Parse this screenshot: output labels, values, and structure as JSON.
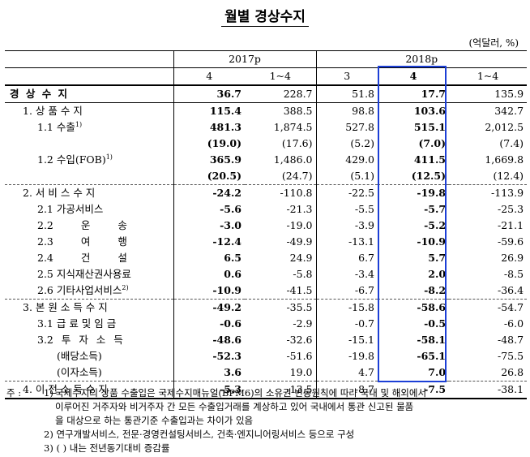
{
  "title": "월별 경상수지",
  "unit": "(억달러, %)",
  "header": {
    "year_2017": "2017p",
    "year_2018": "2018p",
    "months": [
      "4",
      "1~4",
      "3",
      "4",
      "1~4"
    ]
  },
  "rows": [
    {
      "label": "경 상 수 지",
      "v": [
        "36.7",
        "228.7",
        "51.8",
        "17.7",
        "135.9"
      ]
    },
    {
      "label": "1. 상 품 수 지",
      "v": [
        "115.4",
        "388.5",
        "98.8",
        "103.6",
        "342.7"
      ]
    },
    {
      "label": "1.1 수출",
      "v": [
        "481.3",
        "1,874.5",
        "527.8",
        "515.1",
        "2,012.5"
      ]
    },
    {
      "label": "",
      "v": [
        "(19.0)",
        "(17.6)",
        "(5.2)",
        "(7.0)",
        "(7.4)"
      ]
    },
    {
      "label": "1.2 수입(FOB)",
      "v": [
        "365.9",
        "1,486.0",
        "429.0",
        "411.5",
        "1,669.8"
      ]
    },
    {
      "label": "",
      "v": [
        "(20.5)",
        "(24.7)",
        "(5.1)",
        "(12.5)",
        "(12.4)"
      ]
    },
    {
      "label": "2. 서 비 스 수 지",
      "v": [
        "-24.2",
        "-110.8",
        "-22.5",
        "-19.8",
        "-113.9"
      ]
    },
    {
      "label": "2.1 가공서비스",
      "v": [
        "-5.6",
        "-21.3",
        "-5.5",
        "-5.7",
        "-25.3"
      ]
    },
    {
      "label": "2.2 운 송",
      "v": [
        "-3.0",
        "-19.0",
        "-3.9",
        "-5.2",
        "-21.1"
      ]
    },
    {
      "label": "2.3 여 행",
      "v": [
        "-12.4",
        "-49.9",
        "-13.1",
        "-10.9",
        "-59.6"
      ]
    },
    {
      "label": "2.4 건 설",
      "v": [
        "6.5",
        "24.9",
        "6.7",
        "5.7",
        "26.9"
      ]
    },
    {
      "label": "2.5 지식재산권사용료",
      "v": [
        "0.6",
        "-5.8",
        "-3.4",
        "2.0",
        "-8.5"
      ]
    },
    {
      "label": "2.6 기타사업서비스",
      "v": [
        "-10.9",
        "-41.5",
        "-6.7",
        "-8.2",
        "-36.4"
      ]
    },
    {
      "label": "3. 본 원 소 득 수 지",
      "v": [
        "-49.2",
        "-35.5",
        "-15.8",
        "-58.6",
        "-54.7"
      ]
    },
    {
      "label": "3.1 급 료 및 임 금",
      "v": [
        "-0.6",
        "-2.9",
        "-0.7",
        "-0.5",
        "-6.0"
      ]
    },
    {
      "label": "3.2 투 자 소 득",
      "v": [
        "-48.6",
        "-32.6",
        "-15.1",
        "-58.1",
        "-48.7"
      ]
    },
    {
      "label": "(배당소득)",
      "v": [
        "-52.3",
        "-51.6",
        "-19.8",
        "-65.1",
        "-75.5"
      ]
    },
    {
      "label": "(이자소득)",
      "v": [
        "3.6",
        "19.0",
        "4.7",
        "7.0",
        "26.8"
      ]
    },
    {
      "label": "4. 이 전 소 득 수 지",
      "v": [
        "-5.3",
        "-13.5",
        "-8.7",
        "-7.5",
        "-38.1"
      ]
    }
  ],
  "footnote_marks": {
    "export": "1)",
    "import": "1)",
    "other_business": "2)"
  },
  "notes": {
    "prefix": "주 :",
    "n1_num": "1)",
    "n1_l1": "국제수지의 상품 수출입은 국제수지매뉴얼(BPM6)의 소유권 변동원칙에 따라 국내 및 해외에서",
    "n1_l2": "이루어진 거주자와 비거주자 간 모든 수출입거래를 계상하고 있어 국내에서 통관 신고된 물품",
    "n1_l3": "을 대상으로 하는 통관기준 수출입과는 차이가 있음",
    "n2": "2) 연구개발서비스, 전문·경영컨설팅서비스, 건축·엔지니어링서비스 등으로 구성",
    "n3": "3) ( ) 내는 전년동기대비 증감률"
  }
}
